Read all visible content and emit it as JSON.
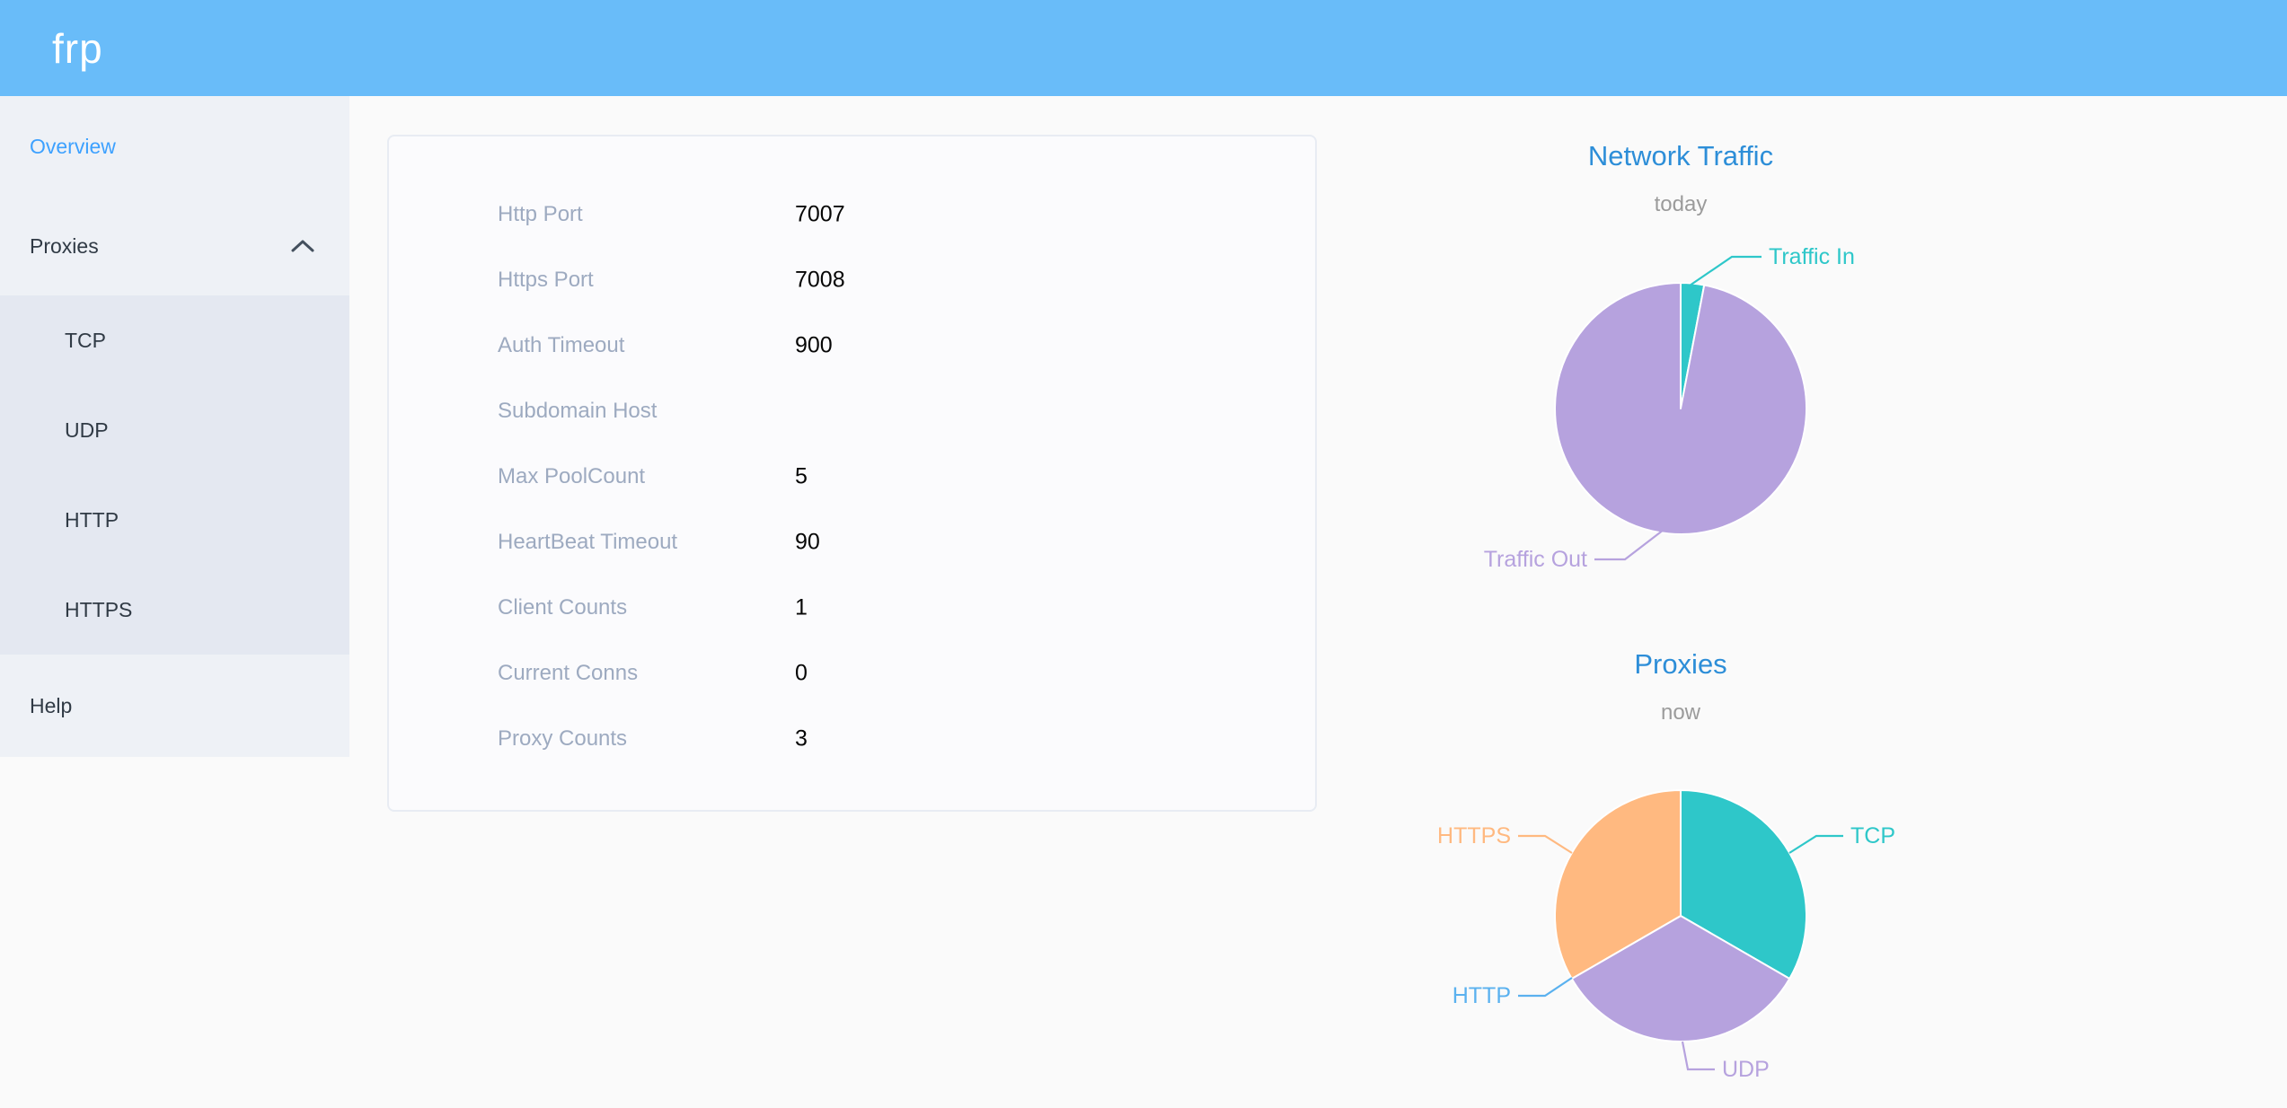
{
  "header": {
    "logo_text": "frp"
  },
  "sidebar": {
    "items": [
      {
        "label": "Overview",
        "active": true
      },
      {
        "label": "Proxies",
        "expanded": true,
        "children": [
          "TCP",
          "UDP",
          "HTTP",
          "HTTPS"
        ]
      },
      {
        "label": "Help"
      }
    ]
  },
  "overview_panel": {
    "rows": [
      {
        "label": "Http Port",
        "value": "7007"
      },
      {
        "label": "Https Port",
        "value": "7008"
      },
      {
        "label": "Auth Timeout",
        "value": "900"
      },
      {
        "label": "Subdomain Host",
        "value": ""
      },
      {
        "label": "Max PoolCount",
        "value": "5"
      },
      {
        "label": "HeartBeat Timeout",
        "value": "90"
      },
      {
        "label": "Client Counts",
        "value": "1"
      },
      {
        "label": "Current Conns",
        "value": "0"
      },
      {
        "label": "Proxy Counts",
        "value": "3"
      }
    ]
  },
  "chart_data": [
    {
      "type": "pie",
      "title": "Network Traffic",
      "subtitle": "today",
      "unit": "share of today's traffic (percent, estimated from slice angles)",
      "label_style": "outside-callout",
      "legend_position": "none",
      "series": [
        {
          "name": "Traffic In",
          "value": 3,
          "color": "#2ec7c9"
        },
        {
          "name": "Traffic Out",
          "value": 97,
          "color": "#b6a2de"
        }
      ]
    },
    {
      "type": "pie",
      "title": "Proxies",
      "subtitle": "now",
      "unit": "proxy count",
      "label_style": "outside-callout",
      "legend_position": "none",
      "series": [
        {
          "name": "TCP",
          "value": 1,
          "color": "#2ec7c9"
        },
        {
          "name": "UDP",
          "value": 1,
          "color": "#b6a2de"
        },
        {
          "name": "HTTP",
          "value": 0,
          "color": "#5ab1ef"
        },
        {
          "name": "HTTPS",
          "value": 1,
          "color": "#ffb980"
        }
      ]
    }
  ],
  "colors": {
    "header_bg": "#69bcf9",
    "sidebar_bg": "#eef1f6",
    "submenu_bg": "#e4e8f1",
    "menu_text": "#303a45",
    "active_menu_text": "#3da1ff",
    "panel_label": "#9daac0",
    "panel_value": "#060606",
    "chart_title": "#2d8ed8",
    "chart_subtitle": "#9b9b9b"
  }
}
